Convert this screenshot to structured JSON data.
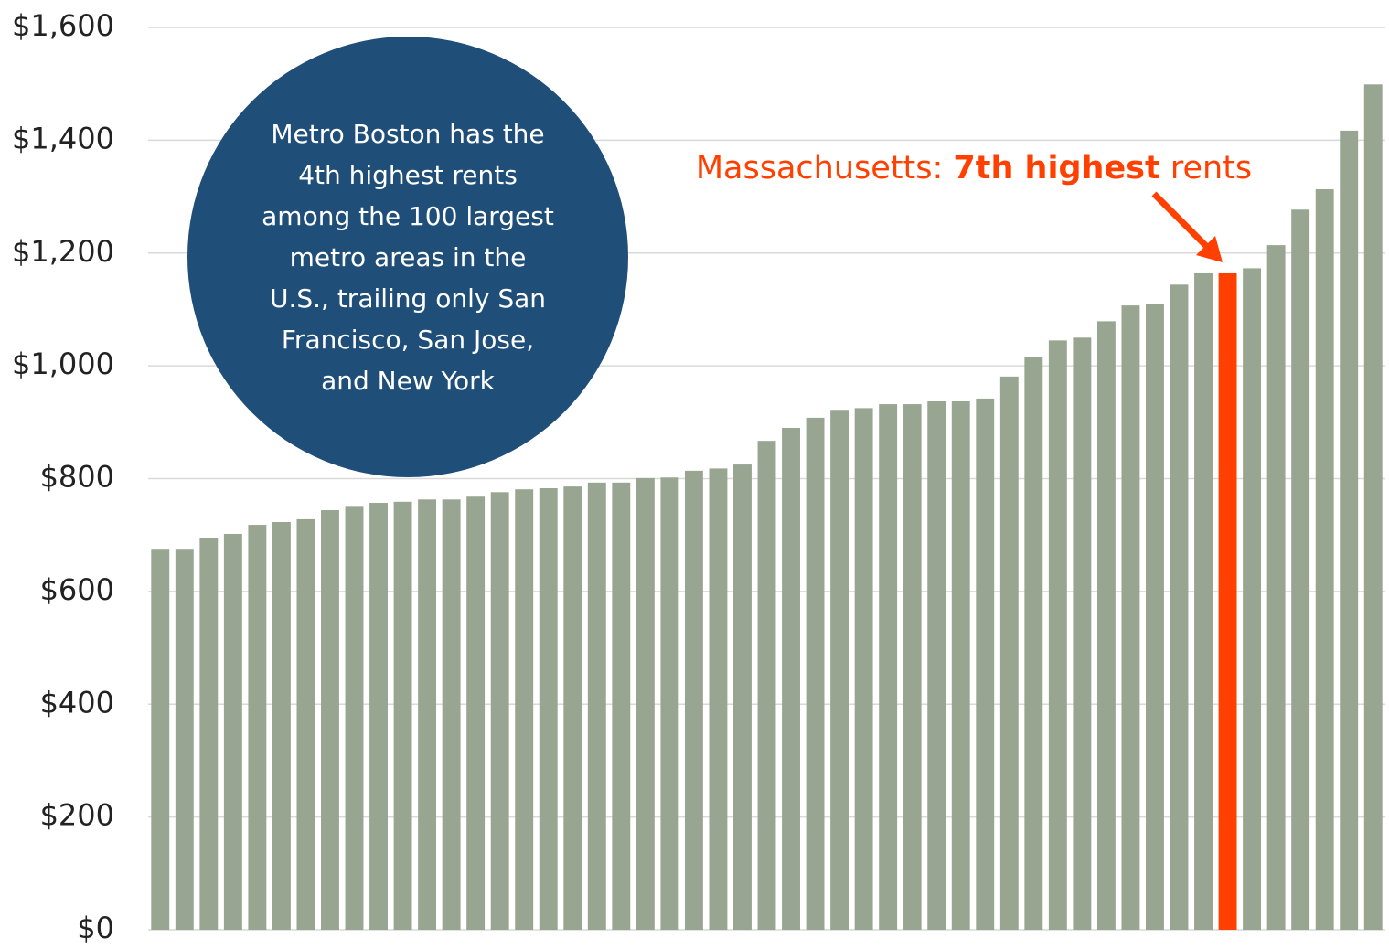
{
  "chart_data": {
    "type": "bar",
    "values": [
      674,
      674,
      694,
      702,
      718,
      723,
      728,
      744,
      750,
      757,
      759,
      763,
      763,
      768,
      776,
      781,
      783,
      786,
      793,
      793,
      801,
      802,
      814,
      818,
      825,
      867,
      890,
      908,
      922,
      925,
      932,
      932,
      937,
      937,
      942,
      981,
      1016,
      1045,
      1050,
      1079,
      1107,
      1110,
      1144,
      1164,
      1164,
      1173,
      1214,
      1277,
      1313,
      1417,
      1499
    ],
    "colors": [
      "#98a591",
      "#98a591",
      "#98a591",
      "#98a591",
      "#98a591",
      "#98a591",
      "#98a591",
      "#98a591",
      "#98a591",
      "#98a591",
      "#98a591",
      "#98a591",
      "#98a591",
      "#98a591",
      "#98a591",
      "#98a591",
      "#98a591",
      "#98a591",
      "#98a591",
      "#98a591",
      "#98a591",
      "#98a591",
      "#98a591",
      "#98a591",
      "#98a591",
      "#98a591",
      "#98a591",
      "#98a591",
      "#98a591",
      "#98a591",
      "#98a591",
      "#98a591",
      "#98a591",
      "#98a591",
      "#98a591",
      "#98a591",
      "#98a591",
      "#98a591",
      "#98a591",
      "#98a591",
      "#98a591",
      "#98a591",
      "#98a591",
      "#98a591",
      "#ff4000",
      "#98a591",
      "#98a591",
      "#98a591",
      "#98a591",
      "#98a591",
      "#98a591"
    ],
    "ylim": [
      0,
      1600
    ],
    "yticks": [
      {
        "value": 0,
        "label": "$0"
      },
      {
        "value": 200,
        "label": "$200"
      },
      {
        "value": 400,
        "label": "$400"
      },
      {
        "value": 600,
        "label": "$600"
      },
      {
        "value": 800,
        "label": "$800"
      },
      {
        "value": 1000,
        "label": "$1,000"
      },
      {
        "value": 1200,
        "label": "$1,200"
      },
      {
        "value": 1400,
        "label": "$1,400"
      },
      {
        "value": 1600,
        "label": "$1,600"
      }
    ],
    "grid": true,
    "annotations": {
      "circle_text": [
        "Metro Boston has the",
        "4th highest rents",
        "among the 100 largest",
        "metro areas in the",
        "U.S., trailing only San",
        "Francisco, San Jose,",
        "and New York"
      ],
      "callout": [
        "Massachusetts: ",
        "7th highest",
        " rents"
      ]
    }
  }
}
